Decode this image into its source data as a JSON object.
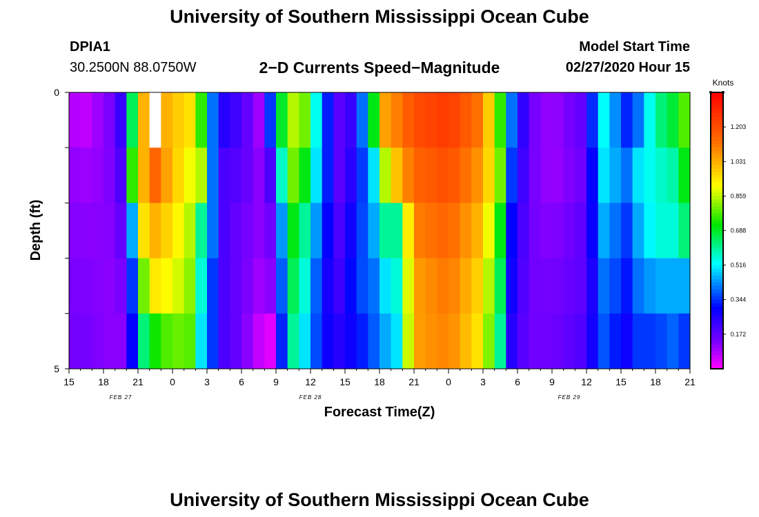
{
  "header": {
    "title": "University of Southern Mississippi Ocean Cube",
    "station_id": "DPIA1",
    "coordinates": "30.2500N 88.0750W",
    "subtitle": "2−D Currents Speed−Magnitude",
    "model_start_label": "Model Start Time",
    "model_start_value": "02/27/2020 Hour 15"
  },
  "footer": {
    "title": "University of Southern Mississippi Ocean Cube"
  },
  "chart_data": {
    "type": "heatmap",
    "title": "2−D Currents Speed−Magnitude",
    "xlabel": "Forecast Time(Z)",
    "ylabel": "Depth (ft)",
    "x_range_hours": [
      0,
      54
    ],
    "y_range": [
      0,
      5
    ],
    "y_tick_labels": [
      "0",
      "5"
    ],
    "x_tick_labels": [
      "15",
      "18",
      "21",
      "0",
      "3",
      "6",
      "9",
      "12",
      "15",
      "18",
      "21",
      "0",
      "3",
      "6",
      "9",
      "12",
      "15",
      "18",
      "21"
    ],
    "date_labels": [
      {
        "label": "FEB 27",
        "hour": 4.5
      },
      {
        "label": "FEB 28",
        "hour": 21
      },
      {
        "label": "FEB 29",
        "hour": 43.5
      }
    ],
    "colorbar": {
      "unit": "Knots",
      "min": 0.0,
      "max": 1.375,
      "tick_values": [
        1.203,
        1.031,
        0.859,
        0.688,
        0.516,
        0.344,
        0.172
      ],
      "tick_labels": [
        "1.203",
        "1.031",
        "0.859",
        "0.688",
        "0.516",
        "0.344",
        "0.172"
      ]
    },
    "depth_layers": 5,
    "missing_cells": [
      {
        "hour": 7,
        "layer": 0
      }
    ],
    "profile_keyframes": [
      {
        "hour": 0,
        "values": [
          0.1,
          0.12,
          0.13,
          0.14,
          0.15
        ]
      },
      {
        "hour": 1,
        "values": [
          0.05,
          0.1,
          0.12,
          0.13,
          0.14
        ]
      },
      {
        "hour": 2,
        "values": [
          0.08,
          0.1,
          0.12,
          0.13,
          0.14
        ]
      },
      {
        "hour": 3,
        "values": [
          0.12,
          0.12,
          0.12,
          0.12,
          0.12
        ]
      },
      {
        "hour": 4,
        "values": [
          0.15,
          0.14,
          0.13,
          0.12,
          0.12
        ]
      },
      {
        "hour": 5,
        "values": [
          0.3,
          0.25,
          0.2,
          0.15,
          0.12
        ]
      },
      {
        "hour": 5.5,
        "values": [
          0.65,
          0.75,
          0.45,
          0.35,
          0.3
        ]
      },
      {
        "hour": 6,
        "values": [
          0.95,
          0.85,
          0.85,
          0.65,
          0.55
        ]
      },
      {
        "hour": 7,
        "values": [
          1.1,
          1.2,
          1.05,
          0.95,
          0.7
        ]
      },
      {
        "hour": 9,
        "values": [
          1.0,
          1.0,
          0.95,
          0.9,
          0.8
        ]
      },
      {
        "hour": 10.5,
        "values": [
          0.95,
          0.9,
          0.85,
          0.82,
          0.78
        ]
      },
      {
        "hour": 11.5,
        "values": [
          0.75,
          0.85,
          0.6,
          0.55,
          0.5
        ]
      },
      {
        "hour": 12.5,
        "values": [
          0.4,
          0.4,
          0.4,
          0.35,
          0.35
        ]
      },
      {
        "hour": 13.5,
        "values": [
          0.25,
          0.2,
          0.2,
          0.2,
          0.2
        ]
      },
      {
        "hour": 15,
        "values": [
          0.2,
          0.18,
          0.15,
          0.15,
          0.15
        ]
      },
      {
        "hour": 16.5,
        "values": [
          0.1,
          0.12,
          0.12,
          0.1,
          0.06
        ]
      },
      {
        "hour": 17.5,
        "values": [
          0.35,
          0.2,
          0.15,
          0.12,
          0.03
        ]
      },
      {
        "hour": 18,
        "values": [
          0.6,
          0.45,
          0.3,
          0.25,
          0.2
        ]
      },
      {
        "hour": 19.5,
        "values": [
          0.85,
          0.8,
          0.7,
          0.65,
          0.6
        ]
      },
      {
        "hour": 20.5,
        "values": [
          0.8,
          0.7,
          0.6,
          0.55,
          0.5
        ]
      },
      {
        "hour": 22,
        "values": [
          0.4,
          0.4,
          0.35,
          0.3,
          0.3
        ]
      },
      {
        "hour": 23.5,
        "values": [
          0.18,
          0.18,
          0.2,
          0.22,
          0.25
        ]
      },
      {
        "hour": 25,
        "values": [
          0.25,
          0.28,
          0.32,
          0.35,
          0.3
        ]
      },
      {
        "hour": 26.5,
        "values": [
          0.7,
          0.5,
          0.45,
          0.4,
          0.38
        ]
      },
      {
        "hour": 27.5,
        "values": [
          1.05,
          0.85,
          0.6,
          0.5,
          0.45
        ]
      },
      {
        "hour": 28.5,
        "values": [
          1.1,
          1.0,
          0.6,
          0.55,
          0.5
        ]
      },
      {
        "hour": 30,
        "values": [
          1.2,
          1.15,
          1.1,
          1.05,
          1.05
        ]
      },
      {
        "hour": 33,
        "values": [
          1.25,
          1.2,
          1.15,
          1.12,
          1.1
        ]
      },
      {
        "hour": 36,
        "values": [
          1.1,
          1.05,
          1.0,
          0.95,
          0.92
        ]
      },
      {
        "hour": 37.5,
        "values": [
          0.75,
          0.8,
          0.7,
          0.65,
          0.6
        ]
      },
      {
        "hour": 38.5,
        "values": [
          0.4,
          0.35,
          0.3,
          0.28,
          0.25
        ]
      },
      {
        "hour": 40,
        "values": [
          0.15,
          0.15,
          0.15,
          0.15,
          0.15
        ]
      },
      {
        "hour": 42,
        "values": [
          0.1,
          0.1,
          0.12,
          0.14,
          0.15
        ]
      },
      {
        "hour": 45,
        "values": [
          0.18,
          0.16,
          0.18,
          0.18,
          0.2
        ]
      },
      {
        "hour": 46,
        "values": [
          0.5,
          0.45,
          0.4,
          0.35,
          0.35
        ]
      },
      {
        "hour": 47,
        "values": [
          0.55,
          0.55,
          0.5,
          0.45,
          0.4
        ]
      },
      {
        "hour": 48,
        "values": [
          0.3,
          0.35,
          0.3,
          0.28,
          0.25
        ]
      },
      {
        "hour": 49.5,
        "values": [
          0.4,
          0.5,
          0.45,
          0.4,
          0.35
        ]
      },
      {
        "hour": 51,
        "values": [
          0.6,
          0.55,
          0.55,
          0.45,
          0.35
        ]
      },
      {
        "hour": 53,
        "values": [
          0.7,
          0.6,
          0.55,
          0.45,
          0.4
        ]
      },
      {
        "hour": 54,
        "values": [
          0.85,
          0.8,
          0.7,
          0.45,
          0.3
        ]
      }
    ]
  }
}
